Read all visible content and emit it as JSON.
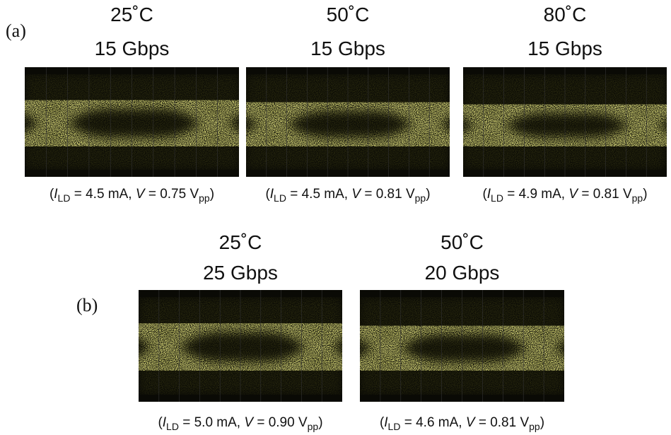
{
  "panel_a": {
    "label": "(a)",
    "eyes": [
      {
        "temperature": "25˚C",
        "rate": "15 Gbps",
        "caption": [
          "(",
          "I",
          "LD",
          " = 4.5 mA, ",
          "V",
          " = 0.75 V",
          "pp",
          ")"
        ]
      },
      {
        "temperature": "50˚C",
        "rate": "15 Gbps",
        "caption": [
          "(",
          "I",
          "LD",
          " = 4.5 mA, ",
          "V",
          " = 0.81 V",
          "pp",
          ")"
        ]
      },
      {
        "temperature": "80˚C",
        "rate": "15 Gbps",
        "caption": [
          "(",
          "I",
          "LD",
          " = 4.9 mA, ",
          "V",
          " = 0.81 V",
          "pp",
          ")"
        ]
      }
    ]
  },
  "panel_b": {
    "label": "(b)",
    "eyes": [
      {
        "temperature": "25˚C",
        "rate": "25 Gbps",
        "caption": [
          "(",
          "I",
          "LD",
          " = 5.0 mA, ",
          "V",
          " = 0.90 V",
          "pp",
          ")"
        ]
      },
      {
        "temperature": "50˚C",
        "rate": "20 Gbps",
        "caption": [
          "(",
          "I",
          "LD",
          " = 4.6 mA, ",
          "V",
          " = 0.81 V",
          "pp",
          ")"
        ]
      }
    ]
  }
}
